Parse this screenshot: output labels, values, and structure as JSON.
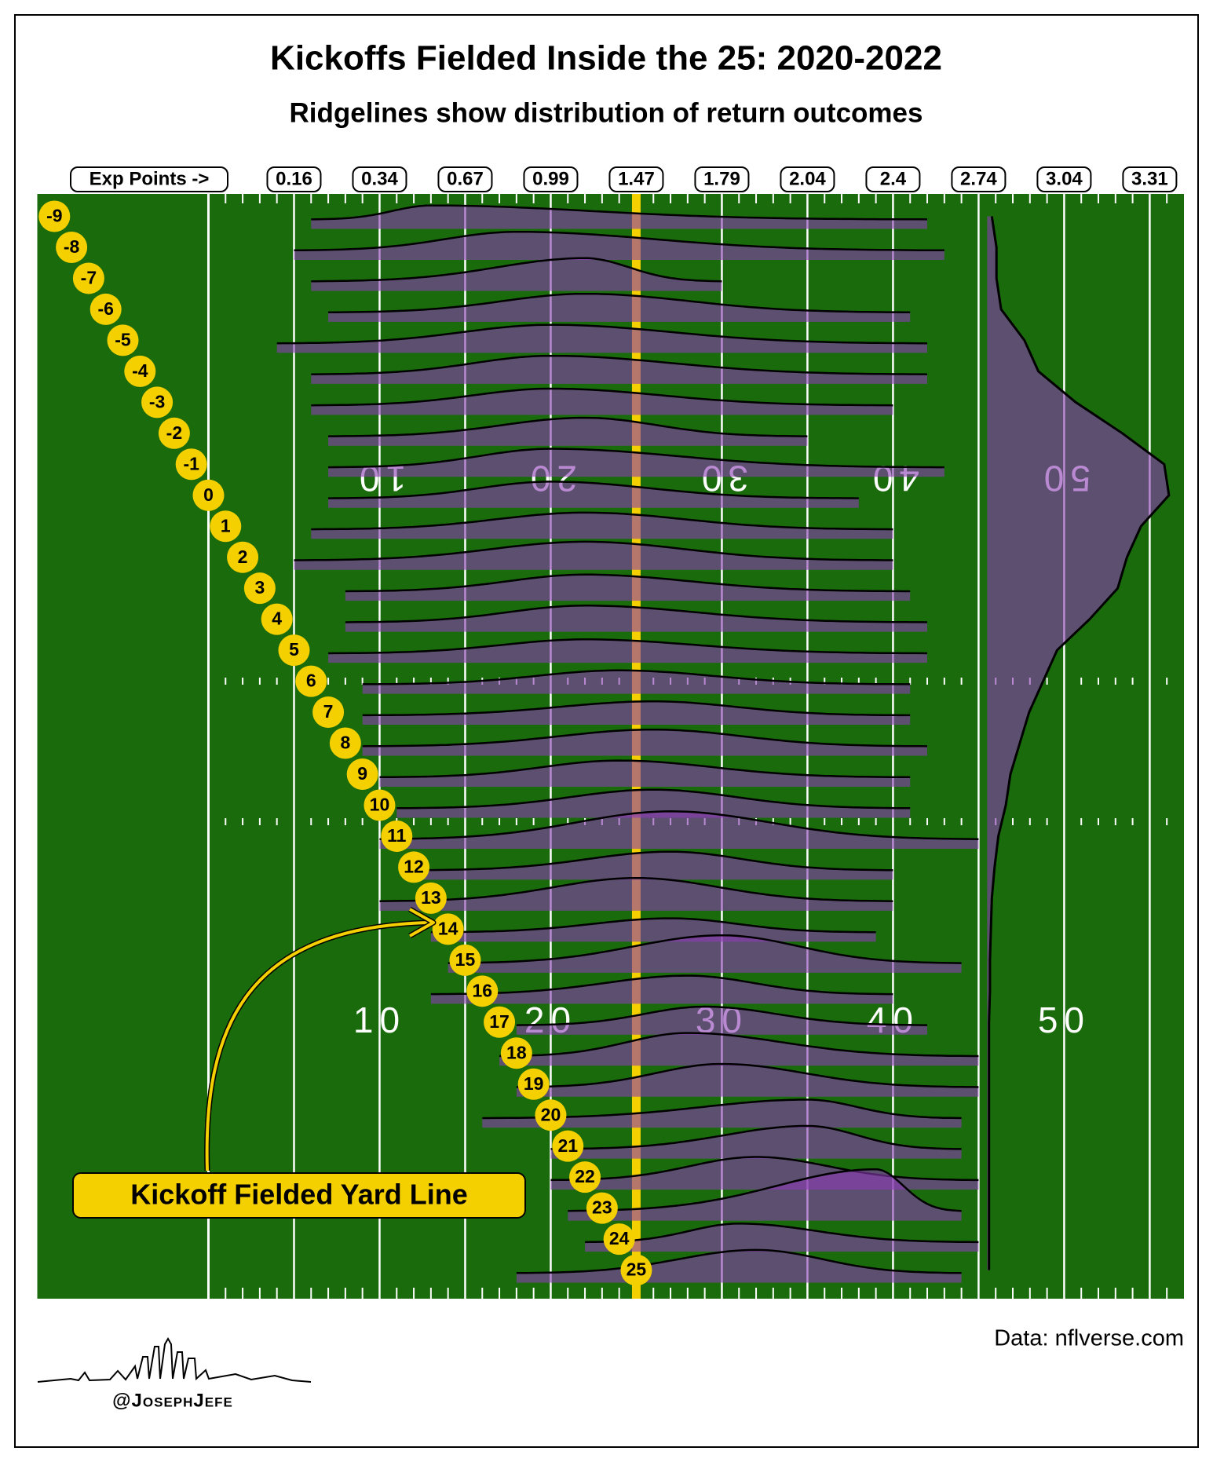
{
  "chart_data": {
    "type": "ridgeline",
    "title": "Kickoffs Fielded Inside the 25: 2020-2022",
    "subtitle": "Ridgelines show distribution of return outcomes",
    "caption": "Data: nflverse.com",
    "handle": "@JosephJefe",
    "annotation": "Kickoff Fielded Yard Line",
    "x_label": "Exp Points ->",
    "xlim": [
      -10,
      57
    ],
    "xticks": [
      {
        "value": 5,
        "label": "0.16"
      },
      {
        "value": 10,
        "label": "0.34"
      },
      {
        "value": 15,
        "label": "0.67"
      },
      {
        "value": 20,
        "label": "0.99"
      },
      {
        "value": 25,
        "label": "1.47"
      },
      {
        "value": 30,
        "label": "1.79"
      },
      {
        "value": 35,
        "label": "2.04"
      },
      {
        "value": 40,
        "label": "2.4"
      },
      {
        "value": 45,
        "label": "2.74"
      },
      {
        "value": 50,
        "label": "3.04"
      },
      {
        "value": 55,
        "label": "3.31"
      }
    ],
    "field_numbers": [
      10,
      20,
      30,
      40,
      50
    ],
    "reference_line": 25,
    "categories": [
      -9,
      -8,
      -7,
      -6,
      -5,
      -4,
      -3,
      -2,
      -1,
      0,
      1,
      2,
      3,
      4,
      5,
      6,
      7,
      8,
      9,
      10,
      11,
      12,
      13,
      14,
      15,
      16,
      17,
      18,
      19,
      20,
      21,
      22,
      23,
      24,
      25
    ],
    "ridge_start": [
      6,
      5,
      6,
      7,
      4,
      6,
      6,
      7,
      7,
      7,
      6,
      5,
      8,
      8,
      7,
      9,
      9,
      9,
      10,
      11,
      10,
      12,
      10,
      13,
      14,
      13,
      18,
      17,
      18,
      16,
      20,
      20,
      21,
      22,
      18
    ],
    "ridge_end": [
      42,
      43,
      30,
      41,
      42,
      42,
      40,
      35,
      43,
      38,
      40,
      40,
      41,
      42,
      42,
      41,
      41,
      42,
      41,
      41,
      45,
      40,
      40,
      39,
      44,
      40,
      42,
      45,
      45,
      44,
      44,
      45,
      44,
      45,
      44
    ],
    "ridge_mode": [
      13,
      18,
      22,
      22,
      20,
      20,
      20,
      22,
      20,
      20,
      22,
      22,
      22,
      22,
      22,
      24,
      26,
      26,
      24,
      26,
      27,
      27,
      25,
      27,
      30,
      28,
      29,
      28,
      30,
      35,
      35,
      32,
      39,
      31,
      32
    ],
    "ridge_height": [
      15,
      20,
      25,
      20,
      20,
      20,
      18,
      20,
      20,
      18,
      18,
      20,
      18,
      18,
      15,
      15,
      15,
      18,
      18,
      20,
      30,
      20,
      25,
      15,
      30,
      20,
      20,
      25,
      25,
      20,
      25,
      25,
      45,
      20,
      25
    ],
    "fielded_counts": [
      5,
      10,
      10,
      15,
      40,
      55,
      95,
      145,
      190,
      195,
      165,
      150,
      140,
      110,
      75,
      60,
      45,
      35,
      25,
      20,
      12,
      8,
      5,
      4,
      3,
      3,
      2,
      2,
      2,
      2,
      2,
      2,
      2,
      2,
      2
    ],
    "fielded_lim": [
      0,
      200
    ],
    "field_color": "#1a6b0c",
    "ridge_color": "#8a3cb4",
    "badge_color": "#f5d000"
  }
}
